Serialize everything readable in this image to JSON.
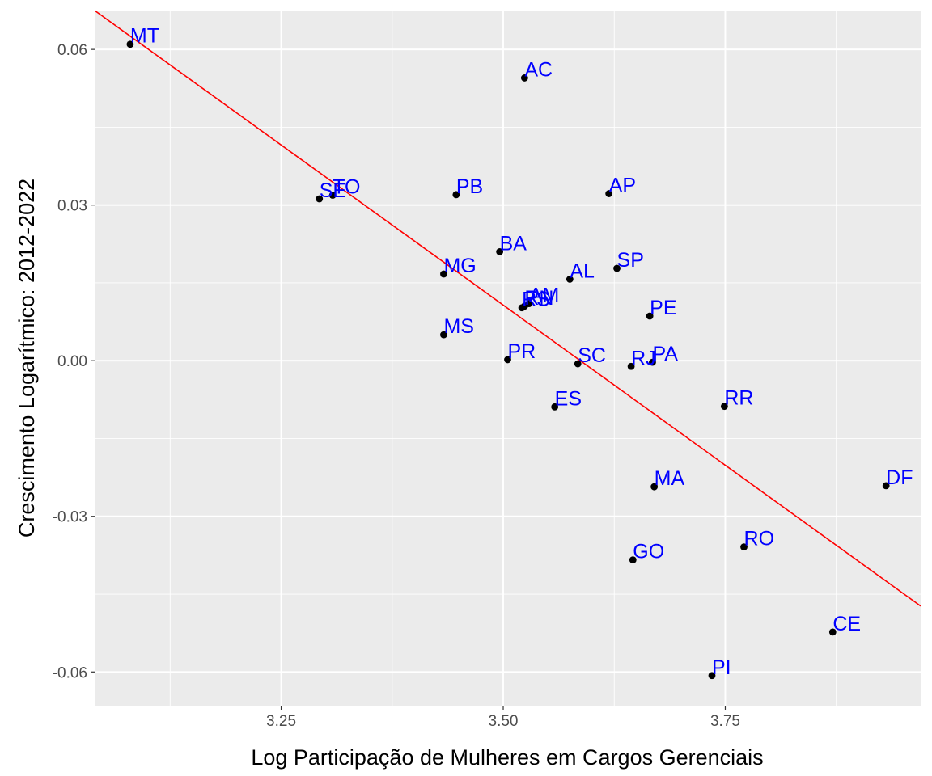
{
  "chart_data": {
    "type": "scatter",
    "title": "",
    "xlabel": "Log Participação de Mulheres em Cargos Gerenciais",
    "ylabel": "Crescimento Logarítmico: 2012-2022",
    "xlim": [
      3.04,
      3.97
    ],
    "ylim": [
      -0.0665,
      0.0675
    ],
    "x_major_ticks": [
      3.25,
      3.5,
      3.75
    ],
    "x_tick_labels": [
      "3.25",
      "3.50",
      "3.75"
    ],
    "x_minor_ticks": [
      3.125,
      3.375,
      3.625,
      3.875
    ],
    "y_major_ticks": [
      -0.06,
      -0.03,
      0.0,
      0.03,
      0.06
    ],
    "y_tick_labels": [
      "-0.06",
      "-0.03",
      "0.00",
      "0.03",
      "0.06"
    ],
    "y_minor_ticks": [
      -0.045,
      -0.015,
      0.015,
      0.045
    ],
    "grid": true,
    "panel_background": "#ebebeb",
    "grid_color": "#ffffff",
    "point_color": "#000000",
    "label_color": "#0000ff",
    "trend_line": {
      "color": "#ff0000",
      "x": [
        3.04,
        3.97
      ],
      "y": [
        0.0675,
        -0.0473
      ]
    },
    "points": [
      {
        "label": "MT",
        "x": 3.08,
        "y": 0.061
      },
      {
        "label": "AC",
        "x": 3.524,
        "y": 0.0545
      },
      {
        "label": "SE",
        "x": 3.293,
        "y": 0.0312
      },
      {
        "label": "TO",
        "x": 3.308,
        "y": 0.0319
      },
      {
        "label": "PB",
        "x": 3.447,
        "y": 0.032
      },
      {
        "label": "AP",
        "x": 3.619,
        "y": 0.0322
      },
      {
        "label": "BA",
        "x": 3.496,
        "y": 0.021
      },
      {
        "label": "MG",
        "x": 3.433,
        "y": 0.0167
      },
      {
        "label": "SP",
        "x": 3.628,
        "y": 0.0178
      },
      {
        "label": "AL",
        "x": 3.575,
        "y": 0.0157
      },
      {
        "label": "RS",
        "x": 3.521,
        "y": 0.0102
      },
      {
        "label": "RN",
        "x": 3.524,
        "y": 0.0105
      },
      {
        "label": "AM",
        "x": 3.529,
        "y": 0.011
      },
      {
        "label": "PE",
        "x": 3.665,
        "y": 0.0086
      },
      {
        "label": "MS",
        "x": 3.433,
        "y": 0.005
      },
      {
        "label": "PR",
        "x": 3.505,
        "y": 0.0002
      },
      {
        "label": "SC",
        "x": 3.584,
        "y": -0.0006
      },
      {
        "label": "RJ",
        "x": 3.644,
        "y": -0.0011
      },
      {
        "label": "PA",
        "x": 3.668,
        "y": -0.0003
      },
      {
        "label": "ES",
        "x": 3.558,
        "y": -0.0089
      },
      {
        "label": "RR",
        "x": 3.749,
        "y": -0.0088
      },
      {
        "label": "MA",
        "x": 3.67,
        "y": -0.0243
      },
      {
        "label": "DF",
        "x": 3.931,
        "y": -0.0241
      },
      {
        "label": "RO",
        "x": 3.771,
        "y": -0.0359
      },
      {
        "label": "GO",
        "x": 3.646,
        "y": -0.0384
      },
      {
        "label": "CE",
        "x": 3.871,
        "y": -0.0523
      },
      {
        "label": "PI",
        "x": 3.735,
        "y": -0.0607
      }
    ]
  }
}
